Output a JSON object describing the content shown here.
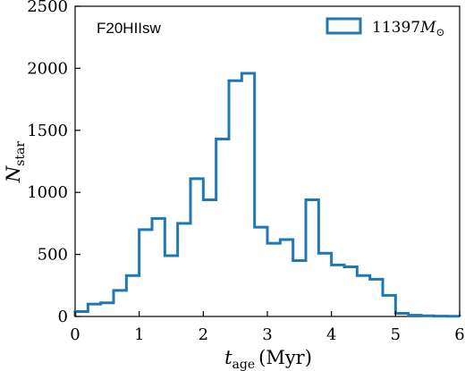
{
  "chart_data": {
    "type": "histogram",
    "panel_label": "F20HIIsw",
    "xlabel": {
      "main": "t",
      "sub": "age",
      "unit": "(Myr)"
    },
    "ylabel": {
      "main": "N",
      "sub": "star"
    },
    "xlim": [
      0,
      6
    ],
    "ylim": [
      0,
      2500
    ],
    "xticks": [
      0,
      1,
      2,
      3,
      4,
      5,
      6
    ],
    "yticks": [
      0,
      500,
      1000,
      1500,
      2000,
      2500
    ],
    "grid": false,
    "legend": {
      "placement": "top-right",
      "entries": [
        {
          "text": "11397",
          "math": "M",
          "sub": "⊙"
        }
      ]
    },
    "series_color": "#1f77b4",
    "bin_width": 0.2,
    "bin_edges_start": 0,
    "series": [
      {
        "values": [
          40,
          100,
          110,
          210,
          330,
          700,
          790,
          490,
          750,
          1110,
          940,
          1430,
          1900,
          1960,
          720,
          590,
          620,
          450,
          940,
          510,
          415,
          400,
          330,
          300,
          170,
          25,
          10,
          5,
          3,
          2
        ]
      }
    ]
  }
}
